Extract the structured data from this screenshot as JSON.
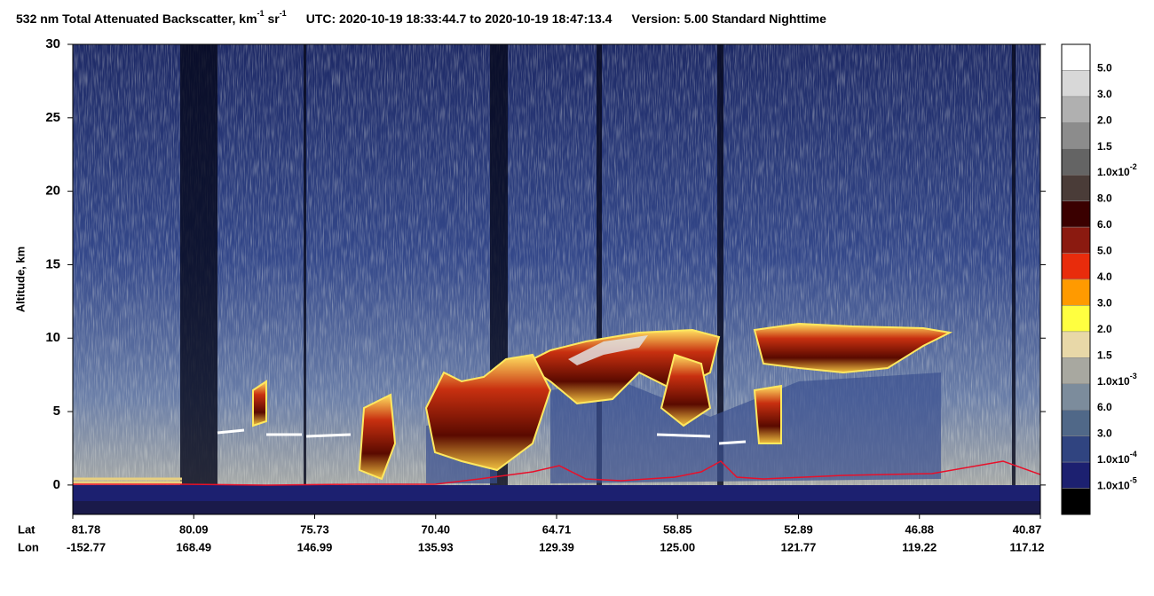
{
  "chart_data": {
    "type": "curtain",
    "title": {
      "text1": "532 nm Total Attenuated Backscatter, km",
      "sup1": "-1",
      "text2": " sr",
      "sup2": "-1",
      "utc": "UTC:  2020-10-19 18:33:44.7  to  2020-10-19 18:47:13.4",
      "version": "Version: 5.00  Standard  Nighttime"
    },
    "ylabel": "Altitude, km",
    "ylim": [
      -2,
      30
    ],
    "yticks": [
      0,
      5,
      10,
      15,
      20,
      25,
      30
    ],
    "xtick_rows": [
      {
        "name": "Lat",
        "labels": [
          "81.78",
          "80.09",
          "75.73",
          "70.40",
          "64.71",
          "58.85",
          "52.89",
          "46.88",
          "40.87"
        ]
      },
      {
        "name": "Lon",
        "labels": [
          "-152.77",
          "168.49",
          "146.99",
          "135.93",
          "129.39",
          "125.00",
          "121.77",
          "119.22",
          "117.12"
        ]
      }
    ],
    "colorbar": {
      "colors": [
        "#ffffff",
        "#d8d8d8",
        "#b0b0b0",
        "#8c8c8c",
        "#646464",
        "#4a3c38",
        "#3a0000",
        "#8b1a10",
        "#e82c0c",
        "#ff9a00",
        "#ffff40",
        "#e8d8a8",
        "#a8a8a0",
        "#7c8c9c",
        "#506888",
        "#304480",
        "#1c2070",
        "#000000"
      ],
      "labels": [
        {
          "text": "5.0"
        },
        {
          "text": "3.0"
        },
        {
          "text": "2.0"
        },
        {
          "text": "1.5"
        },
        {
          "text": "1.0x10",
          "sup": "-2"
        },
        {
          "text": "8.0"
        },
        {
          "text": "6.0"
        },
        {
          "text": "5.0"
        },
        {
          "text": "4.0"
        },
        {
          "text": "3.0"
        },
        {
          "text": "2.0"
        },
        {
          "text": "1.5"
        },
        {
          "text": "1.0x10",
          "sup": "-3"
        },
        {
          "text": "6.0"
        },
        {
          "text": "3.0"
        },
        {
          "text": "1.0x10",
          "sup": "-4"
        },
        {
          "text": "1.0x10",
          "sup": "-5"
        }
      ]
    }
  }
}
